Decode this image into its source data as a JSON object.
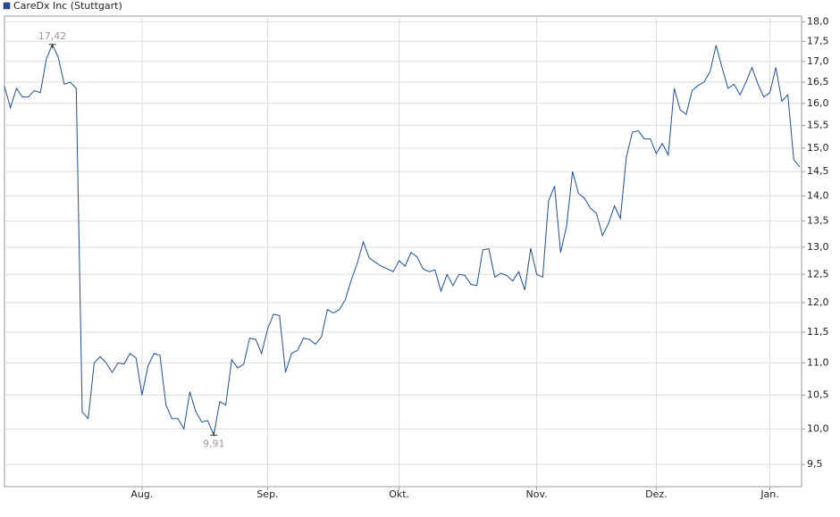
{
  "chart_data": {
    "type": "line",
    "log_scale": true,
    "grid": true,
    "legend": "top-left",
    "series": [
      {
        "name": "CareDx Inc (Stuttgart)",
        "color": "#1f4e9c",
        "values": [
          16.4,
          15.9,
          16.35,
          16.15,
          16.15,
          16.3,
          16.25,
          17.05,
          17.42,
          17.1,
          16.45,
          16.5,
          16.35,
          10.25,
          10.15,
          11.0,
          11.1,
          11.0,
          10.85,
          11.0,
          10.98,
          11.15,
          11.08,
          10.5,
          10.95,
          11.15,
          11.12,
          10.35,
          10.15,
          10.15,
          10.0,
          10.55,
          10.25,
          10.1,
          10.12,
          9.91,
          10.4,
          10.35,
          11.05,
          10.92,
          10.98,
          11.4,
          11.38,
          11.15,
          11.55,
          11.8,
          11.78,
          10.85,
          11.15,
          11.2,
          11.4,
          11.38,
          11.3,
          11.42,
          11.88,
          11.82,
          11.88,
          12.05,
          12.4,
          12.7,
          13.1,
          12.8,
          12.72,
          12.65,
          12.6,
          12.55,
          12.75,
          12.65,
          12.9,
          12.82,
          12.6,
          12.55,
          12.58,
          12.2,
          12.5,
          12.3,
          12.5,
          12.48,
          12.32,
          12.3,
          12.95,
          12.97,
          12.45,
          12.52,
          12.48,
          12.38,
          12.55,
          12.22,
          12.98,
          12.5,
          12.45,
          13.9,
          14.2,
          12.9,
          13.4,
          14.5,
          14.05,
          13.95,
          13.75,
          13.65,
          13.22,
          13.45,
          13.8,
          13.55,
          14.8,
          15.35,
          15.38,
          15.2,
          15.2,
          14.88,
          15.1,
          14.85,
          16.35,
          15.85,
          15.75,
          16.3,
          16.42,
          16.5,
          16.75,
          17.4,
          16.85,
          16.35,
          16.45,
          16.2,
          16.5,
          16.85,
          16.45,
          16.15,
          16.25,
          16.85,
          16.05,
          16.2,
          14.75,
          14.6
        ],
        "value_labels": [
          null,
          null,
          null,
          null,
          null,
          null,
          null,
          null,
          "17,42",
          null,
          null,
          null,
          null,
          null,
          null,
          null,
          null,
          null,
          null,
          null,
          null,
          null,
          null,
          null,
          null,
          null,
          null,
          null,
          null,
          null,
          null,
          null,
          null,
          null,
          null,
          "9,91",
          null,
          null,
          null,
          null,
          null,
          null,
          null,
          null,
          null,
          null,
          null,
          null,
          null,
          null,
          null,
          null,
          null,
          null,
          null,
          null,
          null,
          null,
          null,
          null,
          null,
          null,
          null,
          null,
          null,
          null,
          null,
          null,
          null,
          null,
          null,
          null,
          null,
          null,
          null,
          null,
          null,
          null,
          null,
          null,
          null,
          null,
          null,
          null,
          null,
          null,
          null,
          null,
          null,
          null,
          null,
          null,
          null,
          null,
          null,
          null,
          null,
          null,
          null,
          null,
          null,
          null,
          null,
          null,
          null,
          null,
          null,
          null,
          null,
          null,
          null,
          null,
          null,
          null,
          null,
          null,
          null,
          null,
          null,
          null,
          null,
          null,
          null,
          null,
          null,
          null,
          null,
          null,
          null,
          null,
          null,
          null,
          null,
          null
        ]
      }
    ],
    "categories": [
      null,
      null,
      null,
      null,
      null,
      null,
      null,
      null,
      null,
      null,
      null,
      null,
      null,
      null,
      null,
      null,
      null,
      null,
      null,
      null,
      null,
      null,
      null,
      "Aug.",
      null,
      null,
      null,
      null,
      null,
      null,
      null,
      null,
      null,
      null,
      null,
      null,
      null,
      null,
      null,
      null,
      null,
      null,
      null,
      null,
      "Sep.",
      null,
      null,
      null,
      null,
      null,
      null,
      null,
      null,
      null,
      null,
      null,
      null,
      null,
      null,
      null,
      null,
      null,
      null,
      null,
      null,
      null,
      "Okt.",
      null,
      null,
      null,
      null,
      null,
      null,
      null,
      null,
      null,
      null,
      null,
      null,
      null,
      null,
      null,
      null,
      null,
      null,
      null,
      null,
      null,
      null,
      "Nov.",
      null,
      null,
      null,
      null,
      null,
      null,
      null,
      null,
      null,
      null,
      null,
      null,
      null,
      null,
      null,
      null,
      null,
      null,
      null,
      "Dez.",
      null,
      null,
      null,
      null,
      null,
      null,
      null,
      null,
      null,
      null,
      null,
      null,
      null,
      null,
      null,
      null,
      null,
      null,
      "Jan.",
      null,
      null,
      null,
      null,
      null
    ],
    "ylim": [
      9.2,
      18.15
    ],
    "yticks": [
      {
        "value": 9.5,
        "label": "9,5"
      },
      {
        "value": 10,
        "label": "10,0"
      },
      {
        "value": 10.5,
        "label": "10,5"
      },
      {
        "value": 11,
        "label": "11,0"
      },
      {
        "value": 11.5,
        "label": "11,5"
      },
      {
        "value": 12,
        "label": "12,0"
      },
      {
        "value": 12.5,
        "label": "12,5"
      },
      {
        "value": 13,
        "label": "13,0"
      },
      {
        "value": 13.5,
        "label": "13,5"
      },
      {
        "value": 14,
        "label": "14,0"
      },
      {
        "value": 14.5,
        "label": "14,5"
      },
      {
        "value": 15,
        "label": "15,0"
      },
      {
        "value": 15.5,
        "label": "15,5"
      },
      {
        "value": 16,
        "label": "16,0"
      },
      {
        "value": 16.5,
        "label": "16,5"
      },
      {
        "value": 17,
        "label": "17,0"
      },
      {
        "value": 17.5,
        "label": "17,5"
      },
      {
        "value": 18,
        "label": "18,0"
      }
    ]
  }
}
